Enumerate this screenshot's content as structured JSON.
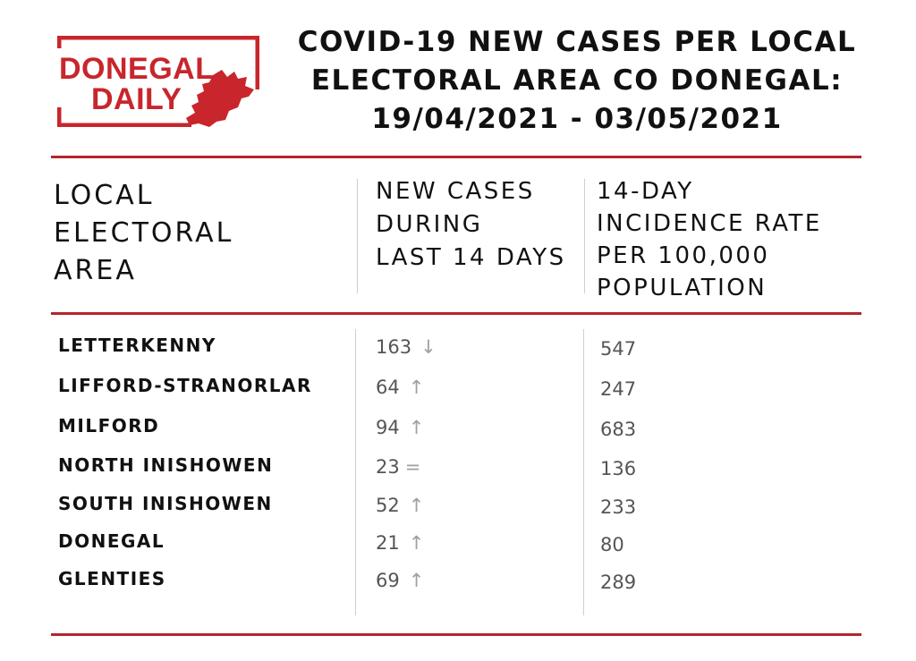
{
  "logo": {
    "line1": "DONEGAL",
    "line2": "DAILY",
    "color": "#c8262c",
    "icon": "donegal-county-map-icon"
  },
  "title": {
    "line1": "COVID-19 NEW CASES PER LOCAL",
    "line2": "ELECTORAL AREA CO DONEGAL:",
    "line3": "19/04/2021 - 03/05/2021"
  },
  "colors": {
    "rule": "#b3262b",
    "text": "#111111",
    "value": "#555555",
    "trend": "#a0a0a0"
  },
  "headers": {
    "area": [
      "LOCAL",
      "ELECTORAL",
      "AREA"
    ],
    "cases": [
      "NEW CASES",
      "DURING",
      "LAST 14 DAYS"
    ],
    "rate": [
      "14-DAY",
      "INCIDENCE RATE",
      "PER 100,000",
      "POPULATION"
    ]
  },
  "rows": [
    {
      "area": "LETTERKENNY",
      "cases": "163",
      "trend": "↓",
      "trend_icon": "arrow-down-icon",
      "rate": "547"
    },
    {
      "area": "LIFFORD-STRANORLAR",
      "cases": "64",
      "trend": "↑",
      "trend_icon": "arrow-up-icon",
      "rate": "247"
    },
    {
      "area": "MILFORD",
      "cases": "94",
      "trend": "↑",
      "trend_icon": "arrow-up-icon",
      "rate": "683"
    },
    {
      "area": "NORTH INISHOWEN",
      "cases": "23",
      "trend": "=",
      "trend_icon": "equals-icon",
      "rate": "136"
    },
    {
      "area": "SOUTH INISHOWEN",
      "cases": "52",
      "trend": "↑",
      "trend_icon": "arrow-up-icon",
      "rate": "233"
    },
    {
      "area": "DONEGAL",
      "cases": "21",
      "trend": "↑",
      "trend_icon": "arrow-up-icon",
      "rate": "80"
    },
    {
      "area": "GLENTIES",
      "cases": "69",
      "trend": "↑",
      "trend_icon": "arrow-up-icon",
      "rate": "289"
    }
  ]
}
